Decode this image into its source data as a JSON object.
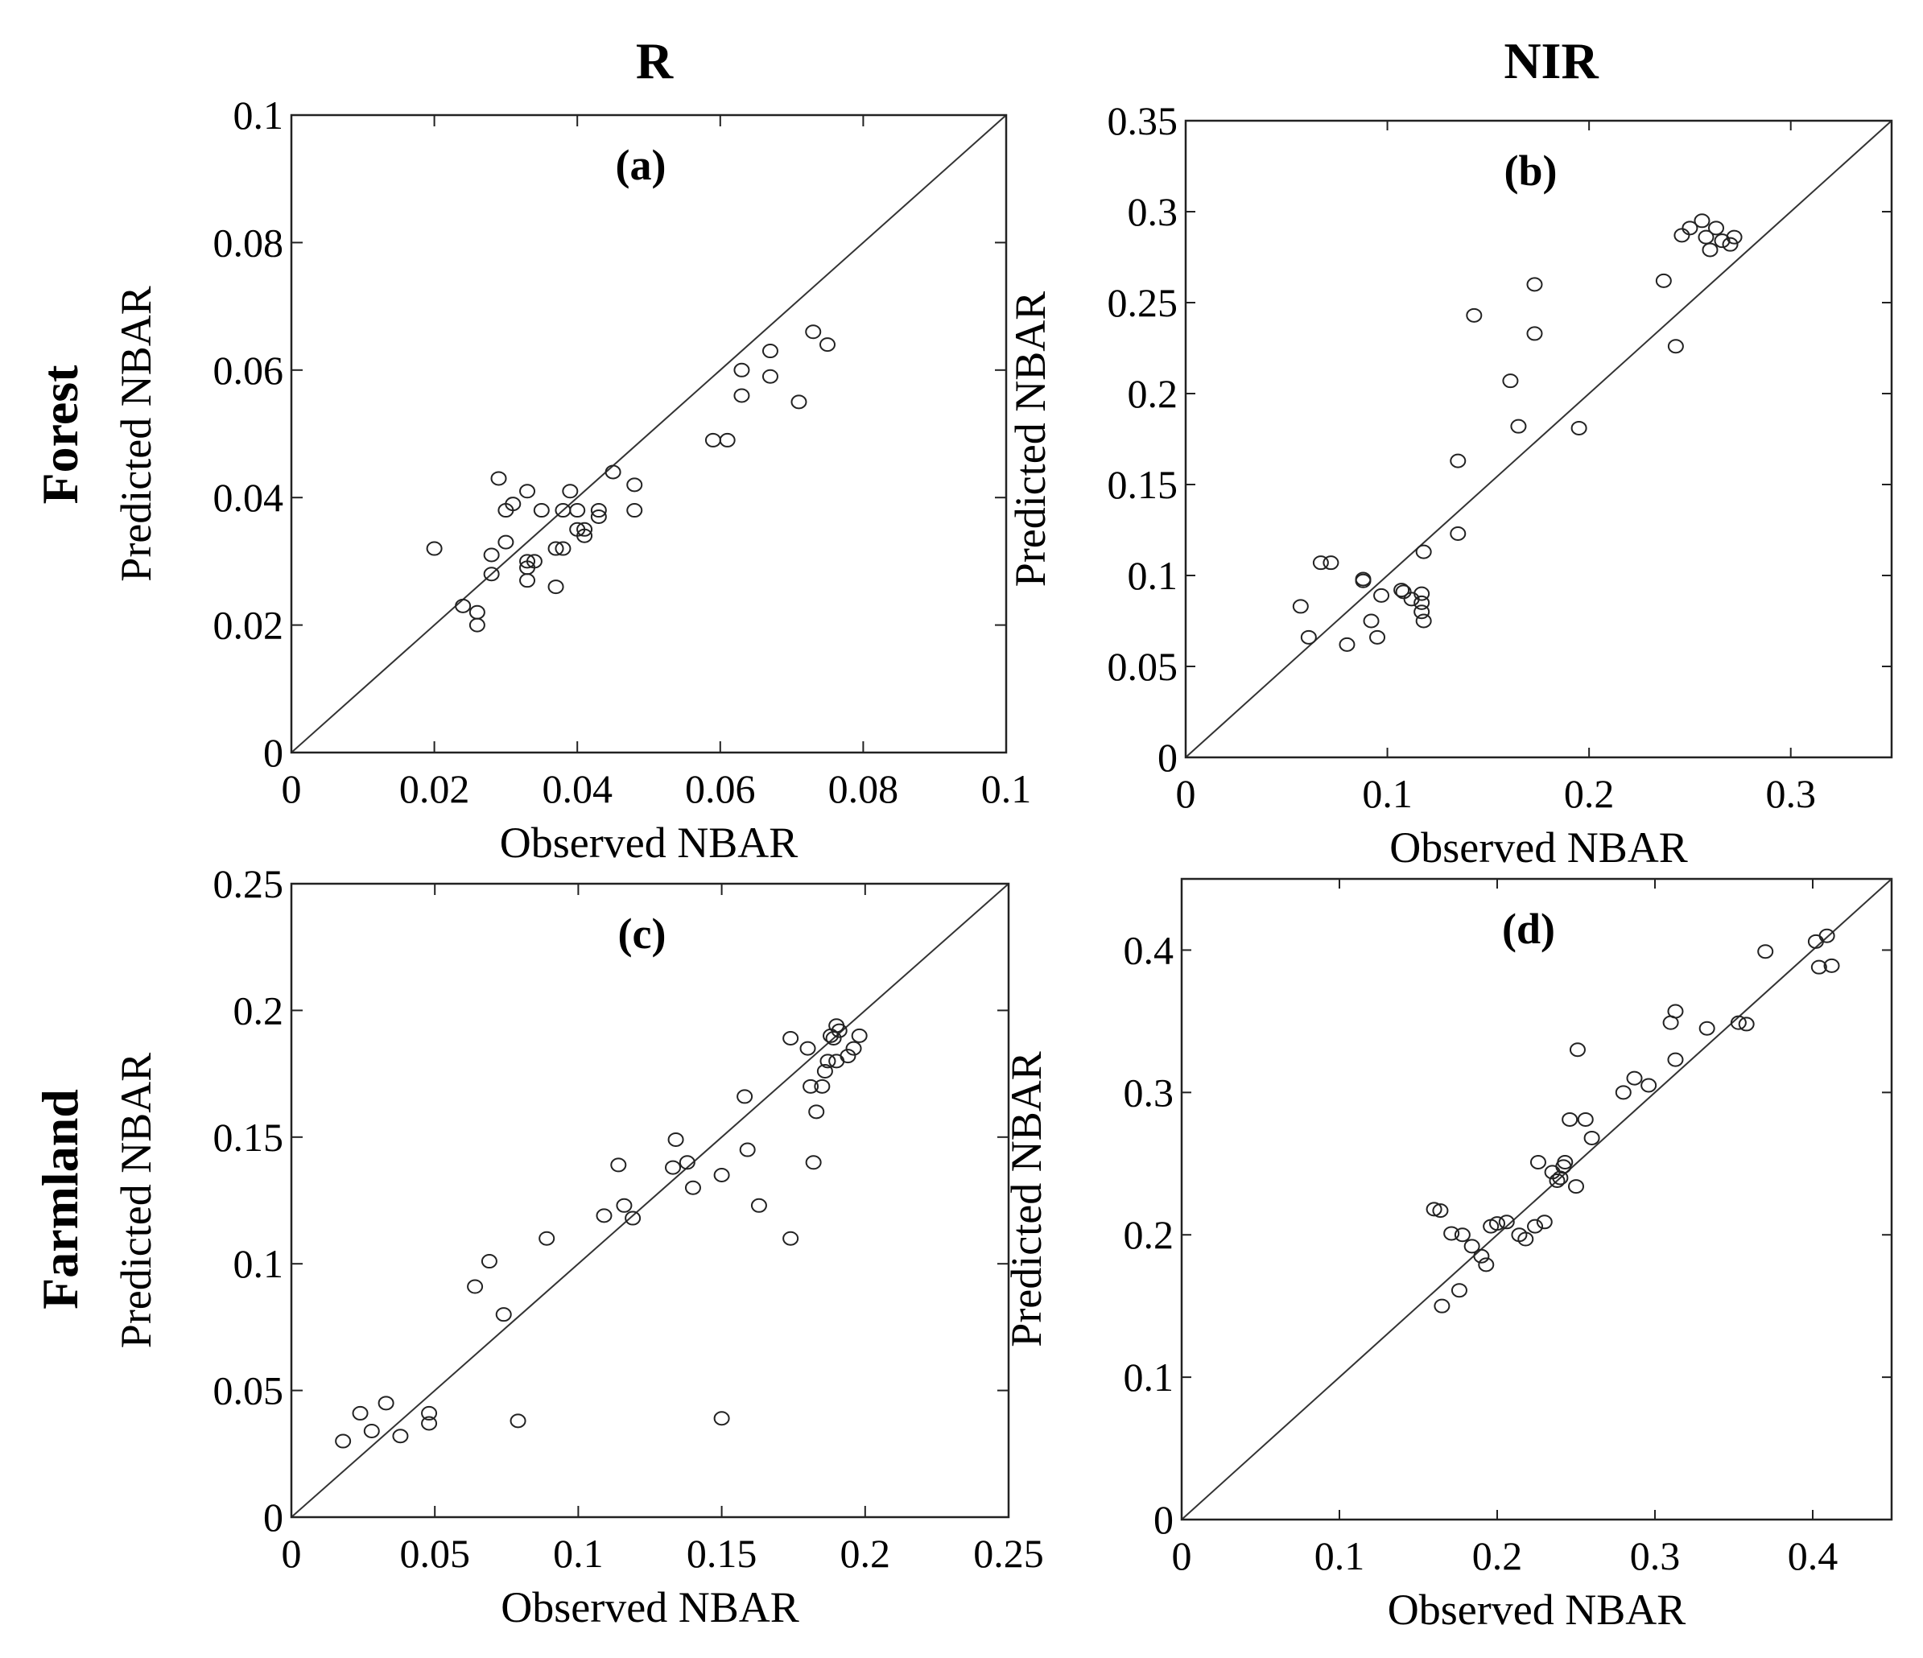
{
  "figure": {
    "column_headers": [
      "R",
      "NIR"
    ],
    "row_headers": [
      "Forest",
      "Farmland"
    ]
  },
  "chart_data": [
    {
      "type": "scatter",
      "panel": "(a)",
      "title": "(a)",
      "xlabel": "Observed NBAR",
      "ylabel": "Predicted NBAR",
      "xlim": [
        0,
        0.1
      ],
      "ylim": [
        0,
        0.1
      ],
      "xticks": [
        0,
        0.02,
        0.04,
        0.06,
        0.08,
        0.1
      ],
      "xtick_labels": [
        "0",
        "0.02",
        "0.04",
        "0.06",
        "0.08",
        "0.1"
      ],
      "yticks": [
        0,
        0.02,
        0.04,
        0.06,
        0.08,
        0.1
      ],
      "ytick_labels": [
        "0",
        "0.02",
        "0.04",
        "0.06",
        "0.08",
        "0.1"
      ],
      "reference_line": "1:1",
      "points": [
        [
          0.02,
          0.032
        ],
        [
          0.024,
          0.023
        ],
        [
          0.026,
          0.022
        ],
        [
          0.026,
          0.02
        ],
        [
          0.028,
          0.031
        ],
        [
          0.028,
          0.028
        ],
        [
          0.03,
          0.033
        ],
        [
          0.029,
          0.043
        ],
        [
          0.03,
          0.038
        ],
        [
          0.031,
          0.039
        ],
        [
          0.033,
          0.041
        ],
        [
          0.033,
          0.03
        ],
        [
          0.033,
          0.029
        ],
        [
          0.034,
          0.03
        ],
        [
          0.033,
          0.027
        ],
        [
          0.035,
          0.038
        ],
        [
          0.037,
          0.032
        ],
        [
          0.038,
          0.032
        ],
        [
          0.037,
          0.026
        ],
        [
          0.038,
          0.038
        ],
        [
          0.039,
          0.041
        ],
        [
          0.04,
          0.038
        ],
        [
          0.04,
          0.035
        ],
        [
          0.041,
          0.035
        ],
        [
          0.041,
          0.034
        ],
        [
          0.043,
          0.037
        ],
        [
          0.043,
          0.038
        ],
        [
          0.045,
          0.044
        ],
        [
          0.048,
          0.042
        ],
        [
          0.048,
          0.038
        ],
        [
          0.059,
          0.049
        ],
        [
          0.061,
          0.049
        ],
        [
          0.063,
          0.06
        ],
        [
          0.063,
          0.056
        ],
        [
          0.067,
          0.063
        ],
        [
          0.067,
          0.059
        ],
        [
          0.071,
          0.055
        ],
        [
          0.073,
          0.066
        ],
        [
          0.075,
          0.064
        ]
      ]
    },
    {
      "type": "scatter",
      "panel": "(b)",
      "title": "(b)",
      "xlabel": "Observed NBAR",
      "ylabel": "Predicted NBAR",
      "xlim": [
        0,
        0.35
      ],
      "ylim": [
        0,
        0.35
      ],
      "xticks": [
        0,
        0.1,
        0.2,
        0.3
      ],
      "xtick_labels": [
        "0",
        "0.1",
        "0.2",
        "0.3"
      ],
      "yticks": [
        0,
        0.05,
        0.1,
        0.15,
        0.2,
        0.25,
        0.3,
        0.35
      ],
      "ytick_labels": [
        "0",
        "0.05",
        "0.1",
        "0.15",
        "0.2",
        "0.25",
        "0.3",
        "0.35"
      ],
      "reference_line": "1:1",
      "points": [
        [
          0.057,
          0.083
        ],
        [
          0.061,
          0.066
        ],
        [
          0.067,
          0.107
        ],
        [
          0.072,
          0.107
        ],
        [
          0.08,
          0.062
        ],
        [
          0.088,
          0.098
        ],
        [
          0.088,
          0.097
        ],
        [
          0.092,
          0.075
        ],
        [
          0.095,
          0.066
        ],
        [
          0.097,
          0.089
        ],
        [
          0.107,
          0.092
        ],
        [
          0.108,
          0.091
        ],
        [
          0.112,
          0.087
        ],
        [
          0.117,
          0.09
        ],
        [
          0.117,
          0.085
        ],
        [
          0.117,
          0.08
        ],
        [
          0.118,
          0.075
        ],
        [
          0.118,
          0.113
        ],
        [
          0.135,
          0.163
        ],
        [
          0.135,
          0.123
        ],
        [
          0.143,
          0.243
        ],
        [
          0.161,
          0.207
        ],
        [
          0.165,
          0.182
        ],
        [
          0.173,
          0.26
        ],
        [
          0.173,
          0.233
        ],
        [
          0.195,
          0.181
        ],
        [
          0.237,
          0.262
        ],
        [
          0.243,
          0.226
        ],
        [
          0.246,
          0.287
        ],
        [
          0.25,
          0.291
        ],
        [
          0.256,
          0.295
        ],
        [
          0.258,
          0.286
        ],
        [
          0.26,
          0.279
        ],
        [
          0.263,
          0.291
        ],
        [
          0.266,
          0.284
        ],
        [
          0.27,
          0.282
        ],
        [
          0.272,
          0.286
        ]
      ]
    },
    {
      "type": "scatter",
      "panel": "(c)",
      "title": "(c)",
      "xlabel": "Observed NBAR",
      "ylabel": "Predicted NBAR",
      "xlim": [
        0,
        0.25
      ],
      "ylim": [
        0,
        0.25
      ],
      "xticks": [
        0,
        0.05,
        0.1,
        0.15,
        0.2,
        0.25
      ],
      "xtick_labels": [
        "0",
        "0.05",
        "0.1",
        "0.15",
        "0.2",
        "0.25"
      ],
      "yticks": [
        0,
        0.05,
        0.1,
        0.15,
        0.2,
        0.25
      ],
      "ytick_labels": [
        "0",
        "0.05",
        "0.1",
        "0.15",
        "0.2",
        "0.25"
      ],
      "reference_line": "1:1",
      "points": [
        [
          0.018,
          0.03
        ],
        [
          0.024,
          0.041
        ],
        [
          0.028,
          0.034
        ],
        [
          0.033,
          0.045
        ],
        [
          0.038,
          0.032
        ],
        [
          0.048,
          0.041
        ],
        [
          0.048,
          0.037
        ],
        [
          0.079,
          0.038
        ],
        [
          0.15,
          0.039
        ],
        [
          0.064,
          0.091
        ],
        [
          0.069,
          0.101
        ],
        [
          0.074,
          0.08
        ],
        [
          0.089,
          0.11
        ],
        [
          0.109,
          0.119
        ],
        [
          0.114,
          0.139
        ],
        [
          0.116,
          0.123
        ],
        [
          0.119,
          0.118
        ],
        [
          0.133,
          0.138
        ],
        [
          0.134,
          0.149
        ],
        [
          0.138,
          0.14
        ],
        [
          0.14,
          0.13
        ],
        [
          0.15,
          0.135
        ],
        [
          0.158,
          0.166
        ],
        [
          0.159,
          0.145
        ],
        [
          0.163,
          0.123
        ],
        [
          0.174,
          0.189
        ],
        [
          0.174,
          0.11
        ],
        [
          0.18,
          0.185
        ],
        [
          0.181,
          0.17
        ],
        [
          0.182,
          0.14
        ],
        [
          0.183,
          0.16
        ],
        [
          0.185,
          0.17
        ],
        [
          0.186,
          0.176
        ],
        [
          0.187,
          0.18
        ],
        [
          0.188,
          0.19
        ],
        [
          0.189,
          0.189
        ],
        [
          0.19,
          0.18
        ],
        [
          0.19,
          0.194
        ],
        [
          0.191,
          0.192
        ],
        [
          0.194,
          0.182
        ],
        [
          0.196,
          0.185
        ],
        [
          0.198,
          0.19
        ]
      ]
    },
    {
      "type": "scatter",
      "panel": "(d)",
      "title": "(d)",
      "xlabel": "Observed NBAR",
      "ylabel": "Predicted NBAR",
      "xlim": [
        0,
        0.45
      ],
      "ylim": [
        0,
        0.45
      ],
      "xticks": [
        0,
        0.1,
        0.2,
        0.3,
        0.4
      ],
      "xtick_labels": [
        "0",
        "0.1",
        "0.2",
        "0.3",
        "0.4"
      ],
      "yticks": [
        0,
        0.1,
        0.2,
        0.3,
        0.4
      ],
      "ytick_labels": [
        "0",
        "0.1",
        "0.2",
        "0.3",
        "0.4"
      ],
      "reference_line": "1:1",
      "points": [
        [
          0.16,
          0.218
        ],
        [
          0.164,
          0.217
        ],
        [
          0.165,
          0.15
        ],
        [
          0.171,
          0.201
        ],
        [
          0.176,
          0.161
        ],
        [
          0.178,
          0.2
        ],
        [
          0.184,
          0.192
        ],
        [
          0.19,
          0.185
        ],
        [
          0.193,
          0.179
        ],
        [
          0.196,
          0.206
        ],
        [
          0.2,
          0.208
        ],
        [
          0.206,
          0.209
        ],
        [
          0.214,
          0.2
        ],
        [
          0.218,
          0.197
        ],
        [
          0.224,
          0.206
        ],
        [
          0.226,
          0.251
        ],
        [
          0.23,
          0.209
        ],
        [
          0.235,
          0.244
        ],
        [
          0.238,
          0.238
        ],
        [
          0.24,
          0.24
        ],
        [
          0.242,
          0.248
        ],
        [
          0.243,
          0.251
        ],
        [
          0.246,
          0.281
        ],
        [
          0.25,
          0.234
        ],
        [
          0.251,
          0.33
        ],
        [
          0.256,
          0.281
        ],
        [
          0.26,
          0.268
        ],
        [
          0.28,
          0.3
        ],
        [
          0.287,
          0.31
        ],
        [
          0.296,
          0.305
        ],
        [
          0.31,
          0.349
        ],
        [
          0.313,
          0.357
        ],
        [
          0.313,
          0.323
        ],
        [
          0.333,
          0.345
        ],
        [
          0.353,
          0.349
        ],
        [
          0.358,
          0.348
        ],
        [
          0.37,
          0.399
        ],
        [
          0.402,
          0.406
        ],
        [
          0.404,
          0.388
        ],
        [
          0.409,
          0.41
        ],
        [
          0.412,
          0.389
        ]
      ]
    }
  ]
}
